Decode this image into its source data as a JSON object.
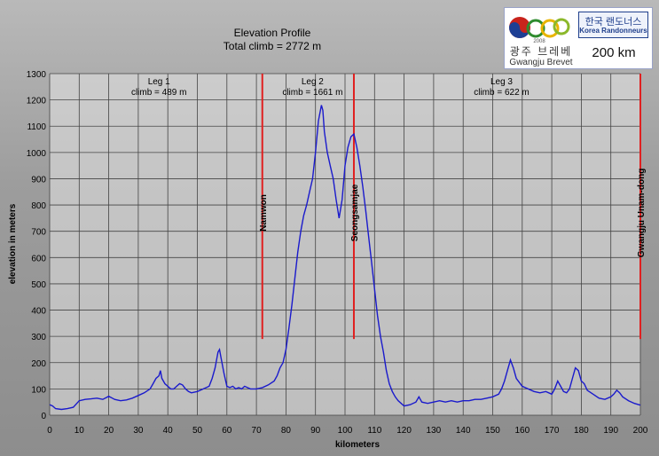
{
  "chart_data": {
    "type": "line",
    "title": "Elevation Profile",
    "subtitle": "Total climb = 2772 m",
    "xlabel": "kilometers",
    "ylabel": "elevation in meters",
    "xlim": [
      0,
      200
    ],
    "ylim": [
      0,
      1300
    ],
    "x_ticks": [
      0,
      10,
      20,
      30,
      40,
      50,
      60,
      70,
      80,
      90,
      100,
      110,
      120,
      130,
      140,
      150,
      160,
      170,
      180,
      190,
      200
    ],
    "y_ticks": [
      0,
      100,
      200,
      300,
      400,
      500,
      600,
      700,
      800,
      900,
      1000,
      1100,
      1200,
      1300
    ],
    "grid": true,
    "line_color": "#1a1acc",
    "marker_color": "#e02020",
    "legs": [
      {
        "name": "Leg 1",
        "climb": "climb = 489 m",
        "center_km": 37
      },
      {
        "name": "Leg 2",
        "climb": "climb = 1661 m",
        "center_km": 89
      },
      {
        "name": "Leg 3",
        "climb": "climb = 622 m",
        "center_km": 153
      }
    ],
    "checkpoints": [
      {
        "name": "Namwon",
        "km": 72
      },
      {
        "name": "Seongsamjae",
        "km": 103
      },
      {
        "name": "Gwangju Unam-dong",
        "km": 200
      }
    ],
    "series": [
      {
        "x": [
          0,
          1,
          2,
          4,
          6,
          8,
          10,
          12,
          14,
          16,
          18,
          20,
          22,
          24,
          26,
          28,
          30,
          32,
          34,
          35,
          36,
          37,
          37.5,
          38,
          39,
          40,
          41,
          42,
          43,
          44,
          45,
          46,
          47,
          48,
          50,
          52,
          54,
          55,
          56,
          57,
          57.5,
          58,
          59,
          60,
          61,
          62,
          63,
          64,
          65,
          66,
          68,
          70,
          72,
          74,
          76,
          77,
          78,
          79,
          80,
          81,
          82,
          83,
          84,
          85,
          86,
          87,
          88,
          89,
          90,
          91,
          92,
          92.5,
          93,
          94,
          95,
          96,
          97,
          98,
          99,
          100,
          101,
          102,
          103,
          104,
          105,
          106,
          107,
          108,
          109,
          110,
          111,
          112,
          113,
          114,
          115,
          116,
          117,
          118,
          119,
          120,
          122,
          124,
          125,
          126,
          128,
          130,
          132,
          134,
          136,
          138,
          140,
          142,
          144,
          146,
          148,
          150,
          152,
          153,
          154,
          155,
          156,
          157,
          158,
          160,
          162,
          164,
          166,
          168,
          170,
          171,
          172,
          173,
          174,
          175,
          176,
          177,
          178,
          179,
          180,
          181,
          182,
          184,
          186,
          188,
          190,
          191,
          192,
          193,
          194,
          196,
          198,
          200
        ],
        "y": [
          40,
          35,
          25,
          22,
          25,
          30,
          55,
          60,
          62,
          65,
          60,
          72,
          60,
          55,
          58,
          65,
          75,
          85,
          100,
          120,
          140,
          150,
          170,
          140,
          120,
          110,
          100,
          100,
          110,
          120,
          115,
          100,
          90,
          85,
          90,
          100,
          110,
          140,
          180,
          240,
          250,
          220,
          160,
          110,
          105,
          110,
          100,
          105,
          100,
          110,
          100,
          100,
          105,
          115,
          130,
          150,
          180,
          200,
          250,
          330,
          420,
          520,
          620,
          700,
          760,
          800,
          850,
          900,
          1000,
          1120,
          1180,
          1160,
          1080,
          1000,
          950,
          900,
          820,
          750,
          820,
          950,
          1020,
          1060,
          1070,
          1020,
          950,
          870,
          780,
          680,
          580,
          480,
          380,
          300,
          240,
          170,
          120,
          90,
          70,
          55,
          45,
          35,
          40,
          50,
          70,
          50,
          45,
          50,
          55,
          50,
          55,
          50,
          55,
          55,
          60,
          60,
          65,
          70,
          80,
          100,
          130,
          170,
          210,
          180,
          140,
          110,
          100,
          90,
          85,
          90,
          80,
          100,
          130,
          110,
          90,
          85,
          100,
          140,
          180,
          170,
          130,
          120,
          95,
          80,
          65,
          60,
          70,
          80,
          95,
          85,
          70,
          55,
          45,
          38
        ]
      }
    ]
  },
  "logo": {
    "korean_title": "광주 브레베",
    "english_title": "Gwangju Brevet",
    "badge_korean": "한국 랜도너스",
    "badge_english": "Korea Randonneurs",
    "distance": "200 km",
    "mark_text": "2008"
  }
}
